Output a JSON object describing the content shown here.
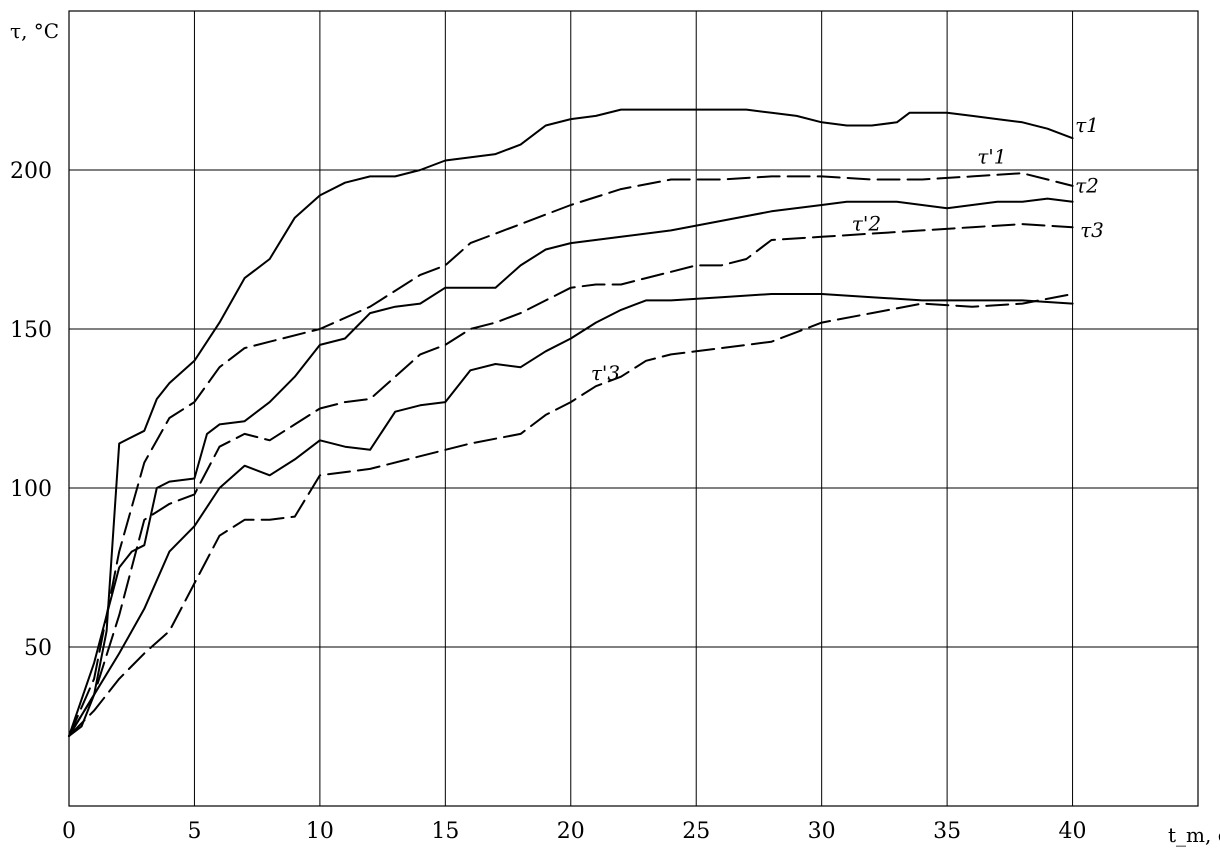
{
  "chart_data": {
    "type": "line",
    "xlabel": "t_m, c",
    "ylabel": "τ, °C",
    "xlim": [
      0,
      45
    ],
    "ylim": [
      0,
      250
    ],
    "xticks": [
      "0",
      "5",
      "10",
      "15",
      "20",
      "25",
      "30",
      "35",
      "40"
    ],
    "yticks": [
      "50",
      "100",
      "150",
      "200"
    ],
    "grid": true,
    "series": [
      {
        "name": "τ1",
        "style": "solid",
        "x": [
          0,
          0.5,
          1,
          1.5,
          2,
          3,
          3.5,
          4,
          5,
          6,
          7,
          8,
          9,
          10,
          11,
          12,
          13,
          14,
          15,
          17,
          18,
          19,
          20,
          21,
          22,
          23,
          24,
          25,
          26,
          27,
          28,
          29,
          30,
          31,
          32,
          33,
          33.5,
          34,
          35,
          36,
          37,
          38,
          39,
          40
        ],
        "y": [
          22,
          25,
          35,
          55,
          114,
          118,
          128,
          133,
          140,
          152,
          166,
          172,
          185,
          192,
          196,
          198,
          198,
          200,
          203,
          205,
          208,
          214,
          216,
          217,
          219,
          219,
          219,
          219,
          219,
          219,
          218,
          217,
          215,
          214,
          214,
          215,
          218,
          218,
          218,
          217,
          216,
          215,
          213,
          210
        ]
      },
      {
        "name": "τ'1",
        "style": "dashed",
        "x": [
          0,
          1,
          2,
          3,
          4,
          5,
          6,
          7,
          8,
          10,
          12,
          14,
          15,
          16,
          18,
          20,
          22,
          24,
          26,
          28,
          30,
          32,
          34,
          36,
          38,
          39,
          40
        ],
        "y": [
          22,
          40,
          80,
          108,
          122,
          127,
          138,
          144,
          146,
          150,
          157,
          167,
          170,
          177,
          183,
          189,
          194,
          197,
          197,
          198,
          198,
          197,
          197,
          198,
          199,
          197,
          195
        ]
      },
      {
        "name": "τ2",
        "style": "solid",
        "x": [
          0,
          1,
          2,
          2.5,
          3,
          3.5,
          4,
          5,
          5.5,
          6,
          7,
          8,
          9,
          10,
          11,
          12,
          13,
          14,
          15,
          17,
          18,
          19,
          20,
          22,
          24,
          26,
          28,
          30,
          31,
          32,
          33,
          34,
          35,
          36,
          37,
          38,
          39,
          40
        ],
        "y": [
          22,
          45,
          75,
          80,
          82,
          100,
          102,
          103,
          117,
          120,
          121,
          127,
          135,
          145,
          147,
          155,
          157,
          158,
          163,
          163,
          170,
          175,
          177,
          179,
          181,
          184,
          187,
          189,
          190,
          190,
          190,
          189,
          188,
          189,
          190,
          190,
          191,
          190
        ]
      },
      {
        "name": "τ'2",
        "style": "dashed",
        "x": [
          0,
          1,
          2,
          3,
          4,
          5,
          6,
          7,
          8,
          9,
          10,
          11,
          12,
          13,
          14,
          15,
          16,
          17,
          18,
          19,
          20,
          21,
          22,
          23,
          24,
          25,
          26,
          27,
          28,
          30,
          32,
          34,
          36,
          38,
          40
        ],
        "y": [
          22,
          35,
          60,
          90,
          95,
          98,
          113,
          117,
          115,
          120,
          125,
          127,
          128,
          135,
          142,
          145,
          150,
          152,
          155,
          159,
          163,
          164,
          164,
          166,
          168,
          170,
          170,
          172,
          178,
          179,
          180,
          181,
          182,
          183,
          182
        ]
      },
      {
        "name": "τ3",
        "style": "solid",
        "x": [
          0,
          1,
          2,
          3,
          4,
          5,
          6,
          7,
          8,
          9,
          10,
          11,
          12,
          13,
          14,
          15,
          16,
          17,
          18,
          19,
          20,
          21,
          22,
          23,
          24,
          26,
          28,
          30,
          32,
          34,
          36,
          38,
          40
        ],
        "y": [
          22,
          35,
          48,
          62,
          80,
          88,
          100,
          107,
          104,
          109,
          115,
          113,
          112,
          124,
          126,
          127,
          137,
          139,
          138,
          143,
          147,
          152,
          156,
          159,
          159,
          160,
          161,
          161,
          160,
          159,
          159,
          159,
          158
        ]
      },
      {
        "name": "τ'3",
        "style": "dashed",
        "x": [
          0,
          1,
          2,
          3,
          4,
          5,
          6,
          7,
          8,
          9,
          10,
          12,
          14,
          16,
          18,
          19,
          20,
          21,
          22,
          23,
          24,
          25,
          26,
          27,
          28,
          30,
          32,
          34,
          36,
          38,
          40
        ],
        "y": [
          22,
          30,
          40,
          48,
          55,
          70,
          85,
          90,
          90,
          91,
          104,
          106,
          110,
          114,
          117,
          123,
          127,
          132,
          135,
          140,
          142,
          143,
          144,
          145,
          146,
          152,
          155,
          158,
          157,
          158,
          161
        ]
      }
    ],
    "series_labels": [
      "τ1",
      "τ'1",
      "τ2",
      "τ'2",
      "τ3",
      "τ'3"
    ]
  }
}
